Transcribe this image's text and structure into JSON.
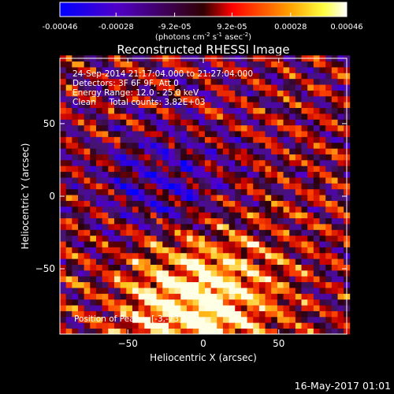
{
  "colorbar": {
    "tick_labels": [
      "-0.00046",
      "-0.00028",
      "-9.2e-05",
      "9.2e-05",
      "0.00028",
      "0.00046"
    ],
    "tick_values": [
      -0.00046,
      -0.00028,
      -9.2e-05,
      9.2e-05,
      0.00028,
      0.00046
    ],
    "range": [
      -0.00046,
      0.00046
    ],
    "units_text": "(photons cm",
    "units_sup1": "-2",
    "units_mid": " s",
    "units_sup2": "-1",
    "units_end": " asec",
    "units_sup3": "-2",
    "units_close": ")"
  },
  "chart_data": {
    "type": "heatmap",
    "title": "Reconstructed RHESSI Image",
    "xlabel": "Heliocentric X (arcsec)",
    "ylabel": "Heliocentric Y (arcsec)",
    "xlim": [
      -95,
      95
    ],
    "ylim": [
      -95,
      95
    ],
    "x_ticks": [
      -50,
      0,
      50
    ],
    "y_ticks": [
      -50,
      0,
      50
    ],
    "x_tick_labels": [
      "−50",
      "0",
      "50"
    ],
    "y_tick_labels": [
      "−50",
      "0",
      "50"
    ],
    "pixel_size_arcsec": 4,
    "peak_position": [
      -3,
      -73
    ],
    "peak_value": 0.00046,
    "info_lines": [
      "24-Sep-2014 21:17:04.000 to 21:27:04.000",
      "Detectors: 3F 6F 9F, Att 0",
      "Energy Range: 12.0 - 25.0 keV",
      "Clean     Total counts: 3.82E+03"
    ],
    "peak_label": "Position of Peak = [-3,-73]",
    "colormap": "blue-purple-red-orange-yellow-white",
    "colors": [
      "#0000ff",
      "#5000c8",
      "#ff0000",
      "#ffa000",
      "#ffff40",
      "#ffffff"
    ]
  },
  "footer": {
    "timestamp": "16-May-2017 01:01"
  }
}
